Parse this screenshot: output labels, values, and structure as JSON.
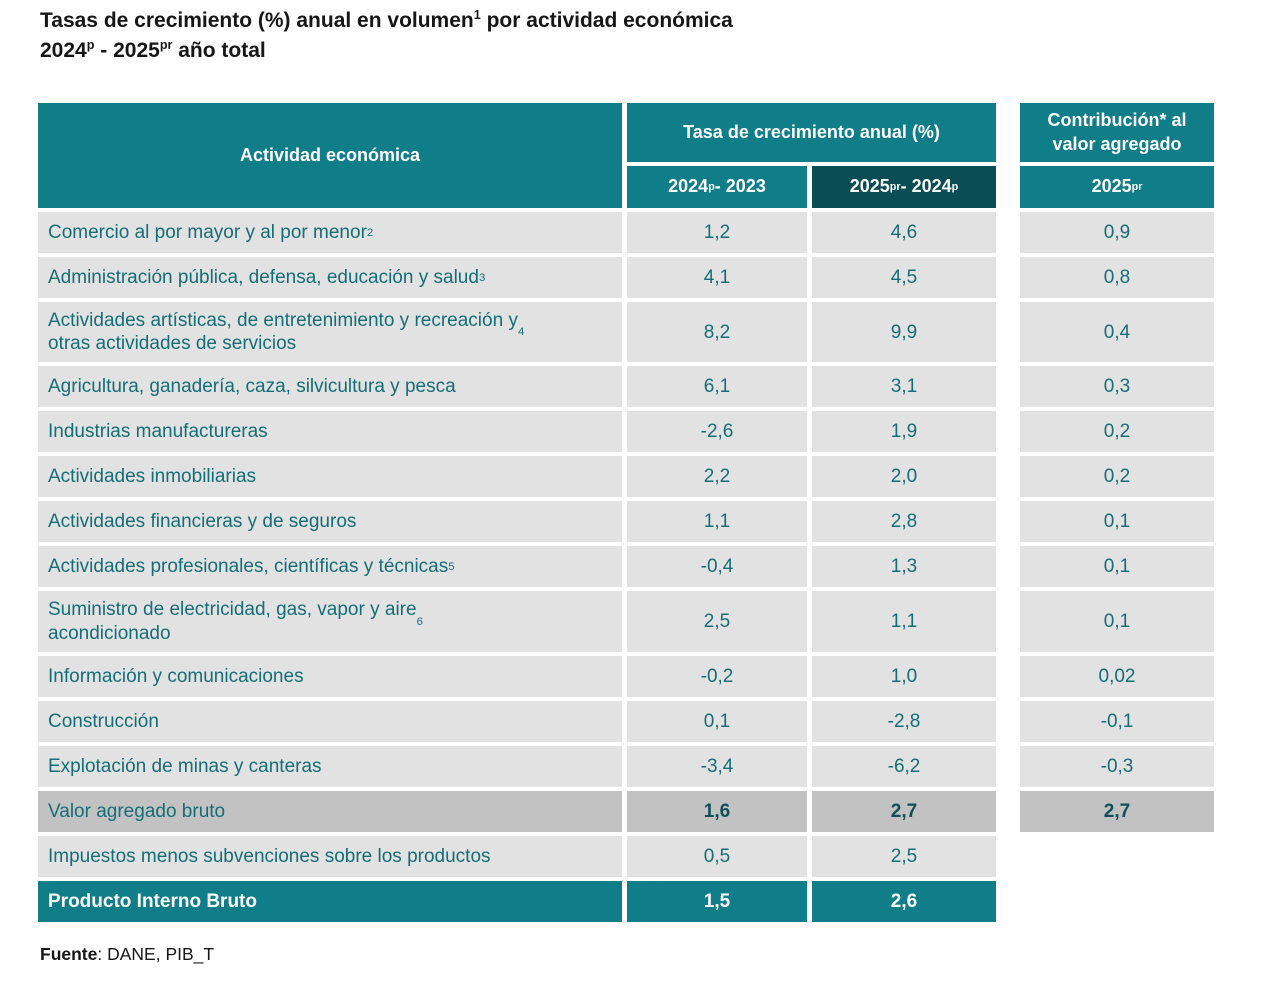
{
  "title": {
    "line1": [
      {
        "t": "Tasas de crecimiento (%) anual en volumen"
      },
      {
        "t": "1",
        "sup": true
      },
      {
        "t": " por actividad económica"
      }
    ],
    "line2": [
      {
        "t": "2024"
      },
      {
        "t": "p",
        "sup": true
      },
      {
        "t": " - 2025"
      },
      {
        "t": "pr",
        "sup": true
      },
      {
        "t": " año total"
      }
    ]
  },
  "table": {
    "col_activity": "Actividad económica",
    "col_growth_group": "Tasa de crecimiento anual (%)",
    "col_growth_1": [
      {
        "t": "2024"
      },
      {
        "t": "p",
        "sup": true
      },
      {
        "t": " - 2023"
      }
    ],
    "col_growth_2": [
      {
        "t": "2025"
      },
      {
        "t": "pr",
        "sup": true
      },
      {
        "t": " - 2024"
      },
      {
        "t": "p",
        "sup": true
      }
    ],
    "col_contribution_group": "Contribución* al valor agregado",
    "col_contribution_sub": [
      {
        "t": "2025"
      },
      {
        "t": "pr",
        "sup": true
      }
    ],
    "rows": [
      {
        "label": "Comercio al por mayor y al por menor",
        "sup": "2",
        "v1": "1,2",
        "v2": "4,6",
        "contrib": "0,9"
      },
      {
        "label": "Administración pública, defensa, educación y salud",
        "sup": "3",
        "v1": "4,1",
        "v2": "4,5",
        "contrib": "0,8"
      },
      {
        "label": "Actividades artísticas, de entretenimiento y recreación y\notras actividades de servicios",
        "sup": "4",
        "v1": "8,2",
        "v2": "9,9",
        "contrib": "0,4"
      },
      {
        "label": "Agricultura, ganadería, caza, silvicultura y pesca",
        "v1": "6,1",
        "v2": "3,1",
        "contrib": "0,3"
      },
      {
        "label": "Industrias manufactureras",
        "v1": "-2,6",
        "v2": "1,9",
        "contrib": "0,2"
      },
      {
        "label": "Actividades inmobiliarias",
        "v1": "2,2",
        "v2": "2,0",
        "contrib": "0,2"
      },
      {
        "label": "Actividades financieras y de seguros",
        "v1": "1,1",
        "v2": "2,8",
        "contrib": "0,1"
      },
      {
        "label": "Actividades profesionales, científicas y técnicas",
        "sup": "5",
        "v1": "-0,4",
        "v2": "1,3",
        "contrib": "0,1"
      },
      {
        "label": "Suministro de electricidad, gas, vapor y aire\nacondicionado",
        "sup": "6",
        "v1": "2,5",
        "v2": "1,1",
        "contrib": "0,1"
      },
      {
        "label": "Información y comunicaciones",
        "v1": "-0,2",
        "v2": "1,0",
        "contrib": "0,02"
      },
      {
        "label": "Construcción",
        "v1": "0,1",
        "v2": "-2,8",
        "contrib": "-0,1"
      },
      {
        "label": "Explotación de minas y canteras",
        "v1": "-3,4",
        "v2": "-6,2",
        "contrib": "-0,3"
      },
      {
        "label": "Valor agregado bruto",
        "v1": "1,6",
        "v2": "2,7",
        "contrib": "2,7",
        "style": "total"
      },
      {
        "label": "Impuestos menos subvenciones sobre los productos",
        "v1": "0,5",
        "v2": "2,5",
        "contrib": null
      },
      {
        "label": "Producto Interno Bruto",
        "v1": "1,5",
        "v2": "2,6",
        "contrib": null,
        "style": "pib"
      }
    ]
  },
  "footer": {
    "label": "Fuente",
    "text": ": DANE, PIB_T"
  },
  "colors": {
    "teal": "#0F7E88",
    "dark_teal": "#0B4D55",
    "row_bg": "#E2E2E2",
    "total_row_bg": "#C2C2C2",
    "row_text": "#146E78",
    "total_value_text": "#0E4F58"
  }
}
